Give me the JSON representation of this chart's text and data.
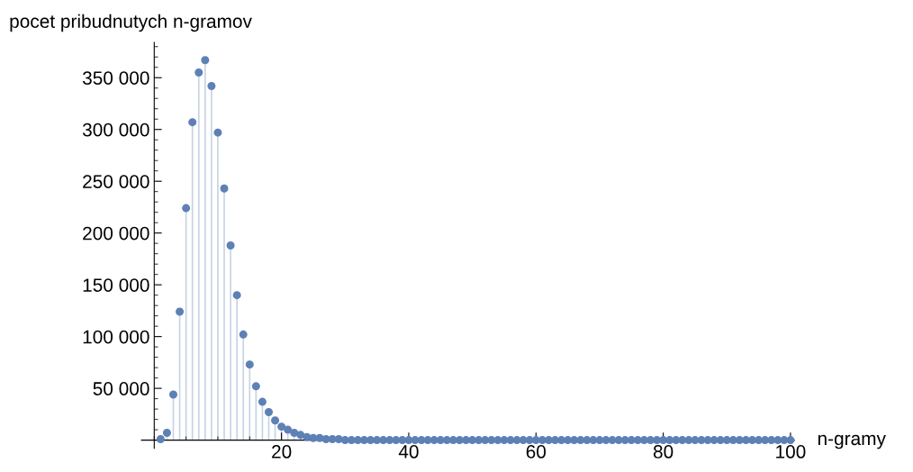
{
  "chart_data": {
    "type": "lollipop",
    "xlabel": "n-gramy",
    "ylabel": "pocet pribudnutych n-gramov",
    "x": [
      1,
      2,
      3,
      4,
      5,
      6,
      7,
      8,
      9,
      10,
      11,
      12,
      13,
      14,
      15,
      16,
      17,
      18,
      19,
      20,
      21,
      22,
      23,
      24,
      25,
      26,
      27,
      28,
      29,
      30,
      31,
      32,
      33,
      34,
      35,
      36,
      37,
      38,
      39,
      40,
      41,
      42,
      43,
      44,
      45,
      46,
      47,
      48,
      49,
      50,
      51,
      52,
      53,
      54,
      55,
      56,
      57,
      58,
      59,
      60,
      61,
      62,
      63,
      64,
      65,
      66,
      67,
      68,
      69,
      70,
      71,
      72,
      73,
      74,
      75,
      76,
      77,
      78,
      79,
      80,
      81,
      82,
      83,
      84,
      85,
      86,
      87,
      88,
      89,
      90,
      91,
      92,
      93,
      94,
      95,
      96,
      97,
      98,
      99,
      100
    ],
    "series": [
      {
        "color": "#5e81b5",
        "values": [
          1000,
          7000,
          44000,
          124000,
          224000,
          307000,
          355000,
          367000,
          342000,
          297000,
          243000,
          188000,
          140000,
          102000,
          73000,
          52000,
          37000,
          27000,
          19000,
          13000,
          10000,
          7000,
          5000,
          3000,
          2000,
          2000,
          1000,
          1000,
          1000,
          0,
          0,
          0,
          0,
          0,
          0,
          0,
          0,
          0,
          0,
          0,
          0,
          0,
          0,
          0,
          0,
          0,
          0,
          0,
          0,
          0,
          0,
          0,
          0,
          0,
          0,
          0,
          0,
          0,
          0,
          0,
          0,
          0,
          0,
          0,
          0,
          0,
          0,
          0,
          0,
          0,
          0,
          0,
          0,
          0,
          0,
          0,
          0,
          0,
          0,
          0,
          0,
          0,
          0,
          0,
          0,
          0,
          0,
          0,
          0,
          0,
          0,
          0,
          0,
          0,
          0,
          0,
          0,
          0,
          0,
          0
        ]
      }
    ],
    "marker": "circle",
    "xlim": [
      -2,
      100.6
    ],
    "ylim": [
      -8000,
      384000
    ],
    "xticks": [
      20,
      40,
      60,
      80,
      100
    ],
    "yticks": [
      {
        "value": 50000,
        "label": "50 000"
      },
      {
        "value": 100000,
        "label": "100 000"
      },
      {
        "value": 150000,
        "label": "150 000"
      },
      {
        "value": 200000,
        "label": "200 000"
      },
      {
        "value": 250000,
        "label": "250 000"
      },
      {
        "value": 300000,
        "label": "300 000"
      },
      {
        "value": 350000,
        "label": "350 000"
      }
    ],
    "grid": false,
    "legend": false
  }
}
